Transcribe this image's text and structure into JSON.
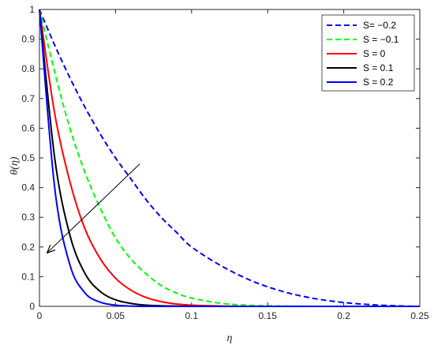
{
  "chart_data": {
    "type": "line",
    "title": "",
    "xlabel": "η",
    "ylabel": "θ(η)",
    "xlim": [
      0,
      0.25
    ],
    "ylim": [
      0,
      1
    ],
    "x_ticks": [
      "0",
      "0.05",
      "0.1",
      "0.15",
      "0.2",
      "0.25"
    ],
    "y_ticks": [
      "0",
      "0.1",
      "0.2",
      "0.3",
      "0.4",
      "0.5",
      "0.6",
      "0.7",
      "0.8",
      "0.9",
      "1"
    ],
    "grid": false,
    "legend_position": "top-right",
    "x": [
      0,
      0.01,
      0.02,
      0.03,
      0.04,
      0.05,
      0.06,
      0.07,
      0.08,
      0.09,
      0.1,
      0.12,
      0.14,
      0.16,
      0.18,
      0.2,
      0.22,
      0.24,
      0.25
    ],
    "series": [
      {
        "name": "S= −0.2",
        "color": "#0000ff",
        "dash": true,
        "values": [
          1,
          0.88,
          0.77,
          0.67,
          0.58,
          0.5,
          0.43,
          0.36,
          0.3,
          0.25,
          0.2,
          0.135,
          0.085,
          0.05,
          0.027,
          0.013,
          0.005,
          0.001,
          0
        ]
      },
      {
        "name": "S = −0.1",
        "color": "#00ff00",
        "dash": true,
        "values": [
          1,
          0.79,
          0.6,
          0.45,
          0.33,
          0.23,
          0.16,
          0.11,
          0.07,
          0.045,
          0.028,
          0.01,
          0.003,
          0.001,
          0,
          0,
          0,
          0,
          0
        ]
      },
      {
        "name": "S =  0",
        "color": "#ff0000",
        "dash": false,
        "values": [
          1,
          0.65,
          0.42,
          0.26,
          0.16,
          0.095,
          0.055,
          0.03,
          0.016,
          0.008,
          0.004,
          0.001,
          0,
          0,
          0,
          0,
          0,
          0,
          0
        ]
      },
      {
        "name": "S =  0.1",
        "color": "#000000",
        "dash": false,
        "values": [
          1,
          0.5,
          0.24,
          0.11,
          0.05,
          0.022,
          0.01,
          0.004,
          0.002,
          0.001,
          0,
          0,
          0,
          0,
          0,
          0,
          0,
          0,
          0
        ]
      },
      {
        "name": "S =  0.2",
        "color": "#0000ff",
        "dash": false,
        "values": [
          1,
          0.4,
          0.14,
          0.045,
          0.014,
          0.004,
          0.001,
          0,
          0,
          0,
          0,
          0,
          0,
          0,
          0,
          0,
          0,
          0,
          0
        ]
      }
    ],
    "annotation_arrow": {
      "from": [
        0.066,
        0.48
      ],
      "to": [
        0.005,
        0.18
      ]
    }
  }
}
